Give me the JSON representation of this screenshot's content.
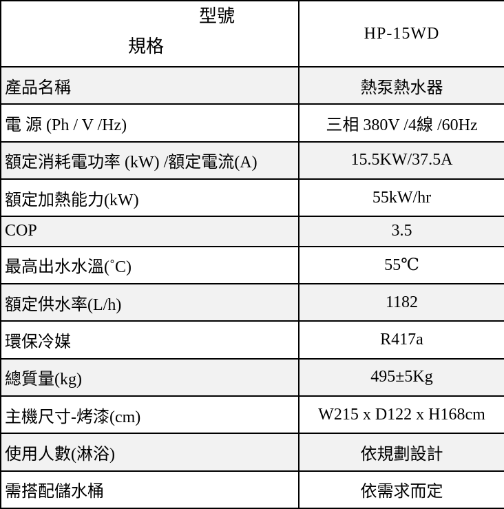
{
  "table": {
    "header": {
      "corner_top": "型號",
      "corner_bottom": "規格",
      "model": "HP-15WD"
    },
    "rows": [
      {
        "label": "產品名稱",
        "value": "熱泵熱水器"
      },
      {
        "label": "電 源 (Ph / V /Hz)",
        "value": "三相 380V /4線 /60Hz"
      },
      {
        "label": "額定消耗電功率 (kW) /額定電流(A)",
        "value": "15.5KW/37.5A"
      },
      {
        "label": "額定加熱能力(kW)",
        "value": "55kW/hr"
      },
      {
        "label": "COP",
        "value": "3.5"
      },
      {
        "label": "最高出水水溫(˚C)",
        "value": "55℃"
      },
      {
        "label": "額定供水率(L/h)",
        "value": "1182"
      },
      {
        "label": "環保冷媒",
        "value": "R417a"
      },
      {
        "label": "總質量(kg)",
        "value": "495±5Kg"
      },
      {
        "label": "主機尺寸-烤漆(cm)",
        "value": "W215 x D122 x H168cm"
      },
      {
        "label": "使用人數(淋浴)",
        "value": "依規劃設計"
      },
      {
        "label": "需搭配儲水桶",
        "value": "依需求而定"
      }
    ],
    "colors": {
      "shaded_row_bg": "#f2f2f2",
      "border": "#000000",
      "background": "#ffffff",
      "text": "#000000"
    }
  }
}
